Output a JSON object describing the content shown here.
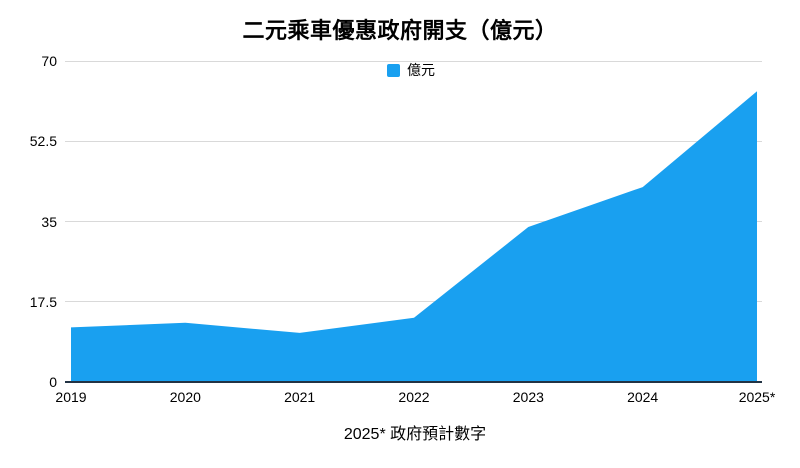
{
  "title": "二元乘車優惠政府開支（億元）",
  "legend": {
    "label": "億元"
  },
  "footnote": "2025* 政府預計數字",
  "colors": {
    "series_fill": "#19a0f0",
    "axis_line": "#223344",
    "gridline": "#d9d9d9",
    "text": "#000000"
  },
  "chart_data": {
    "type": "area",
    "title": "二元乘車優惠政府開支（億元）",
    "categories": [
      "2019",
      "2020",
      "2021",
      "2022",
      "2023",
      "2024",
      "2025*"
    ],
    "series": [
      {
        "name": "億元",
        "values": [
          11.9,
          12.9,
          10.7,
          14.0,
          33.8,
          42.5,
          63.4
        ]
      }
    ],
    "xlabel": "",
    "ylabel": "",
    "ylim": [
      0,
      70
    ],
    "y_ticks": [
      0,
      17.5,
      35,
      52.5,
      70
    ],
    "y_tick_labels": [
      "0",
      "17.5",
      "35",
      "52.5",
      "70"
    ],
    "grid": "horizontal",
    "legend_position": "top-center",
    "annotation": "2025* 政府預計數字"
  }
}
